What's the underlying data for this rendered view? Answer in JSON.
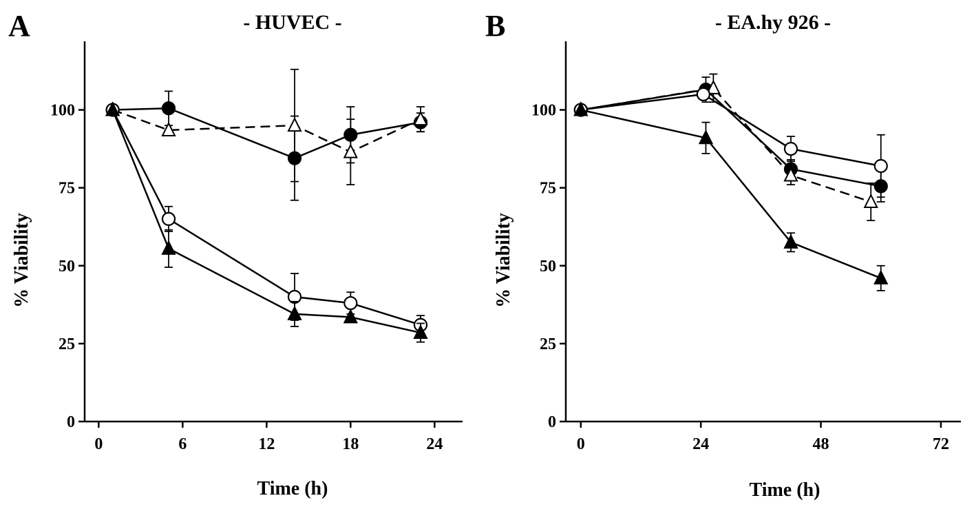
{
  "chart_data": [
    {
      "type": "line",
      "panel": "A",
      "title": "- HUVEC -",
      "xlabel": "Time (h)",
      "ylabel": "% Viability",
      "xlim": [
        -1,
        26
      ],
      "ylim": [
        0,
        122
      ],
      "xticks": [
        "0",
        "6",
        "12",
        "18",
        "24"
      ],
      "yticks": [
        "0",
        "25",
        "50",
        "75",
        "100"
      ],
      "series": [
        {
          "marker": "filled-circle",
          "dashed": false,
          "x": [
            1,
            5,
            14,
            18,
            23
          ],
          "y": [
            100,
            100.5,
            84.5,
            92,
            96
          ],
          "err": [
            0,
            5.5,
            13.5,
            9,
            3
          ]
        },
        {
          "marker": "open-triangle",
          "dashed": true,
          "x": [
            1,
            5,
            14,
            18,
            23
          ],
          "y": [
            100,
            93.5,
            95,
            86.5,
            97
          ],
          "err": [
            0,
            0,
            18,
            10.5,
            4
          ]
        },
        {
          "marker": "open-circle",
          "dashed": false,
          "x": [
            1,
            5,
            14,
            18,
            23
          ],
          "y": [
            100,
            65,
            40,
            38,
            31
          ],
          "err": [
            0,
            4,
            7.5,
            3.5,
            3
          ]
        },
        {
          "marker": "filled-triangle",
          "dashed": false,
          "x": [
            1,
            5,
            14,
            18,
            23
          ],
          "y": [
            100,
            55.5,
            34.5,
            33.5,
            28.5
          ],
          "err": [
            0,
            6,
            4,
            0,
            3
          ]
        }
      ]
    },
    {
      "type": "line",
      "panel": "B",
      "title": "- EA.hy 926 -",
      "xlabel": "Time (h)",
      "ylabel": "% Viability",
      "xlim": [
        -3,
        76
      ],
      "ylim": [
        0,
        122
      ],
      "xticks": [
        "0",
        "24",
        "48",
        "72"
      ],
      "yticks": [
        "0",
        "25",
        "50",
        "75",
        "100"
      ],
      "series": [
        {
          "marker": "filled-circle",
          "dashed": false,
          "x": [
            0,
            25,
            42,
            60
          ],
          "y": [
            100,
            106.5,
            81,
            75.5
          ],
          "err": [
            0,
            4,
            3,
            5
          ]
        },
        {
          "marker": "open-triangle",
          "dashed": true,
          "x": [
            0,
            26.5,
            42,
            58
          ],
          "y": [
            100,
            107,
            79,
            70.5
          ],
          "err": [
            0,
            4.5,
            3,
            6
          ]
        },
        {
          "marker": "open-circle",
          "dashed": false,
          "x": [
            0,
            24.5,
            42,
            60
          ],
          "y": [
            100,
            105,
            87.5,
            82
          ],
          "err": [
            0,
            0,
            4,
            10
          ]
        },
        {
          "marker": "filled-triangle",
          "dashed": false,
          "x": [
            0,
            25,
            42,
            60
          ],
          "y": [
            100,
            91,
            57.5,
            46
          ],
          "err": [
            0,
            5,
            3,
            4
          ]
        }
      ]
    }
  ]
}
